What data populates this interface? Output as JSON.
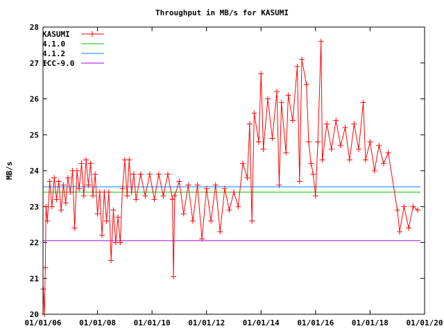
{
  "chart_data": {
    "type": "line",
    "title": "Throughput in MB/s for KASUMI",
    "xlabel": "",
    "ylabel": "MB/s",
    "xlim": [
      "2006-01-01",
      "2020-01-01"
    ],
    "ylim": [
      20,
      28
    ],
    "x_tick_labels": [
      "01/01/06",
      "01/01/08",
      "01/01/10",
      "01/01/12",
      "01/01/14",
      "01/01/16",
      "01/01/18",
      "01/01/20"
    ],
    "y_tick_labels": [
      "20",
      "21",
      "22",
      "23",
      "24",
      "25",
      "26",
      "27",
      "28"
    ],
    "grid": false,
    "legend": "top-left",
    "series": [
      {
        "name": "KASUMI",
        "color": "#ff0000",
        "style": "linespoints",
        "points": [
          [
            "2006-01-05",
            20.7
          ],
          [
            "2006-01-20",
            20.0
          ],
          [
            "2006-02-01",
            21.3
          ],
          [
            "2006-02-10",
            23.0
          ],
          [
            "2006-03-01",
            22.6
          ],
          [
            "2006-04-01",
            23.7
          ],
          [
            "2006-05-01",
            23.0
          ],
          [
            "2006-06-01",
            23.8
          ],
          [
            "2006-07-01",
            23.2
          ],
          [
            "2006-08-01",
            23.7
          ],
          [
            "2006-09-01",
            22.9
          ],
          [
            "2006-10-01",
            23.6
          ],
          [
            "2006-11-01",
            23.1
          ],
          [
            "2006-12-01",
            23.8
          ],
          [
            "2007-01-01",
            23.4
          ],
          [
            "2007-02-01",
            24.0
          ],
          [
            "2007-03-01",
            22.4
          ],
          [
            "2007-04-01",
            24.0
          ],
          [
            "2007-05-01",
            23.5
          ],
          [
            "2007-06-01",
            24.2
          ],
          [
            "2007-07-01",
            23.3
          ],
          [
            "2007-08-01",
            24.3
          ],
          [
            "2007-09-01",
            23.6
          ],
          [
            "2007-10-01",
            24.2
          ],
          [
            "2007-11-01",
            23.3
          ],
          [
            "2007-12-01",
            23.9
          ],
          [
            "2008-01-01",
            22.8
          ],
          [
            "2008-02-01",
            23.4
          ],
          [
            "2008-03-01",
            22.2
          ],
          [
            "2008-04-01",
            23.4
          ],
          [
            "2008-05-01",
            22.6
          ],
          [
            "2008-06-01",
            23.4
          ],
          [
            "2008-07-01",
            21.5
          ],
          [
            "2008-08-01",
            22.9
          ],
          [
            "2008-09-01",
            22.0
          ],
          [
            "2008-10-01",
            22.7
          ],
          [
            "2008-11-01",
            22.0
          ],
          [
            "2008-12-01",
            23.5
          ],
          [
            "2009-01-01",
            24.3
          ],
          [
            "2009-02-01",
            23.3
          ],
          [
            "2009-03-01",
            24.3
          ],
          [
            "2009-04-01",
            23.4
          ],
          [
            "2009-05-01",
            23.9
          ],
          [
            "2009-06-01",
            23.2
          ],
          [
            "2009-08-01",
            23.9
          ],
          [
            "2009-10-01",
            23.3
          ],
          [
            "2009-12-01",
            23.9
          ],
          [
            "2010-02-01",
            23.2
          ],
          [
            "2010-04-01",
            23.9
          ],
          [
            "2010-06-01",
            23.3
          ],
          [
            "2010-08-01",
            23.9
          ],
          [
            "2010-10-01",
            23.2
          ],
          [
            "2010-10-15",
            21.05
          ],
          [
            "2010-11-01",
            23.3
          ],
          [
            "2011-01-01",
            23.7
          ],
          [
            "2011-03-01",
            22.8
          ],
          [
            "2011-05-01",
            23.6
          ],
          [
            "2011-07-01",
            22.6
          ],
          [
            "2011-09-01",
            23.6
          ],
          [
            "2011-11-01",
            22.1
          ],
          [
            "2012-01-01",
            23.5
          ],
          [
            "2012-03-01",
            22.6
          ],
          [
            "2012-05-01",
            23.6
          ],
          [
            "2012-07-01",
            22.3
          ],
          [
            "2012-09-01",
            23.5
          ],
          [
            "2012-11-01",
            22.9
          ],
          [
            "2013-01-01",
            23.4
          ],
          [
            "2013-03-01",
            23.0
          ],
          [
            "2013-05-01",
            24.2
          ],
          [
            "2013-07-01",
            23.8
          ],
          [
            "2013-08-01",
            25.3
          ],
          [
            "2013-09-01",
            22.6
          ],
          [
            "2013-10-01",
            25.6
          ],
          [
            "2013-12-01",
            24.8
          ],
          [
            "2014-01-01",
            26.7
          ],
          [
            "2014-02-01",
            24.6
          ],
          [
            "2014-04-01",
            26.0
          ],
          [
            "2014-06-01",
            24.9
          ],
          [
            "2014-08-01",
            26.2
          ],
          [
            "2014-09-01",
            23.6
          ],
          [
            "2014-10-01",
            25.9
          ],
          [
            "2014-12-01",
            24.5
          ],
          [
            "2015-01-01",
            26.1
          ],
          [
            "2015-03-01",
            25.4
          ],
          [
            "2015-05-01",
            26.9
          ],
          [
            "2015-06-01",
            23.7
          ],
          [
            "2015-07-01",
            27.1
          ],
          [
            "2015-09-01",
            26.4
          ],
          [
            "2015-10-01",
            24.8
          ],
          [
            "2015-11-01",
            24.2
          ],
          [
            "2015-12-01",
            23.9
          ],
          [
            "2016-01-01",
            23.3
          ],
          [
            "2016-02-01",
            24.8
          ],
          [
            "2016-03-15",
            27.6
          ],
          [
            "2016-04-01",
            24.3
          ],
          [
            "2016-06-01",
            25.3
          ],
          [
            "2016-08-01",
            24.6
          ],
          [
            "2016-10-01",
            25.4
          ],
          [
            "2016-12-01",
            24.7
          ],
          [
            "2017-02-01",
            25.2
          ],
          [
            "2017-04-01",
            24.3
          ],
          [
            "2017-06-01",
            25.3
          ],
          [
            "2017-08-01",
            24.6
          ],
          [
            "2017-10-01",
            25.9
          ],
          [
            "2017-11-01",
            24.3
          ],
          [
            "2018-01-01",
            24.8
          ],
          [
            "2018-03-01",
            24.0
          ],
          [
            "2018-05-01",
            24.7
          ],
          [
            "2018-07-01",
            24.2
          ],
          [
            "2018-09-01",
            24.5
          ],
          [
            "2019-01-01",
            22.9
          ],
          [
            "2019-02-01",
            22.3
          ],
          [
            "2019-04-01",
            23.0
          ],
          [
            "2019-06-01",
            22.4
          ],
          [
            "2019-08-01",
            23.0
          ],
          [
            "2019-10-01",
            22.9
          ]
        ]
      },
      {
        "name": "4.1.0",
        "color": "#00c000",
        "style": "hline",
        "value": 23.4
      },
      {
        "name": "4.1.2",
        "color": "#0080ff",
        "style": "hline",
        "value": 23.55
      },
      {
        "name": "ICC-9.0",
        "color": "#a000e0",
        "style": "hline",
        "value": 22.05
      }
    ]
  }
}
